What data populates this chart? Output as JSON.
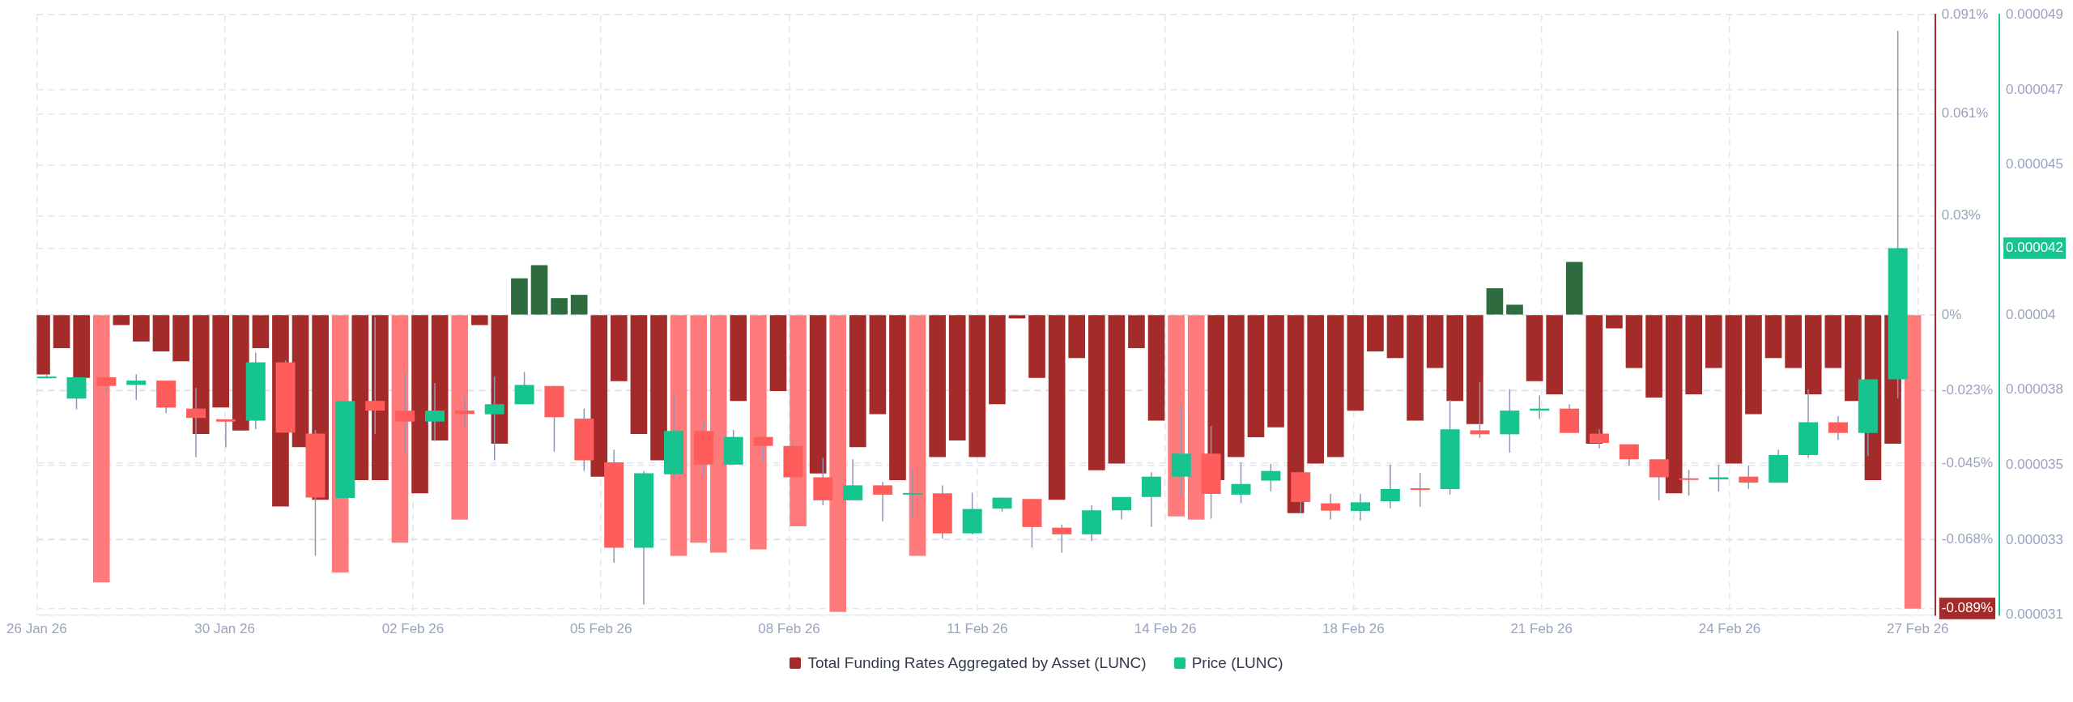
{
  "chart_data": {
    "type": "bar",
    "legend": "bottom",
    "grid": true,
    "xlim": [
      "--01-26T23:00",
      "--02-27T18:00"
    ],
    "xticks": [
      {
        "value": "--01-26T23:00",
        "label": "26 Jan 26"
      },
      {
        "value": "--01-30T02:36",
        "label": "30 Jan 26"
      },
      {
        "value": "--02-02T06:12",
        "label": "02 Feb 26"
      },
      {
        "value": "--02-05T09:48",
        "label": "05 Feb 26"
      },
      {
        "value": "--02-08T13:24",
        "label": "08 Feb 26"
      },
      {
        "value": "--02-11T17:00",
        "label": "11 Feb 26"
      },
      {
        "value": "--02-14T20:36",
        "label": "14 Feb 26"
      },
      {
        "value": "--02-18T00:12",
        "label": "18 Feb 26"
      },
      {
        "value": "--02-21T03:48",
        "label": "21 Feb 26"
      },
      {
        "value": "--02-24T07:24",
        "label": "24 Feb 26"
      },
      {
        "value": "--02-27T11:00",
        "label": "27 Feb 26"
      }
    ],
    "ylim": [
      -0.091,
      0.091
    ],
    "yticks": [
      {
        "value": 0.091,
        "label": "0.091%"
      },
      {
        "value": 0.061,
        "label": "0.061%"
      },
      {
        "value": 0.03,
        "label": "0.03%"
      },
      {
        "value": 0,
        "label": "0%"
      },
      {
        "value": -0.023,
        "label": "-0.023%"
      },
      {
        "value": -0.045,
        "label": "-0.045%"
      },
      {
        "value": -0.068,
        "label": "-0.068%"
      },
      {
        "value": -0.089,
        "label": "-0.089%"
      }
    ],
    "y2lim": [
      3.1e-05,
      4.9e-05
    ],
    "y2ticks": [
      {
        "value": 4.9e-05,
        "label": "0.000049"
      },
      {
        "value": 4.675e-05,
        "label": "0.000047"
      },
      {
        "value": 4.45e-05,
        "label": "0.000045"
      },
      {
        "value": 4.2e-05,
        "label": "0.000042"
      },
      {
        "value": 4e-05,
        "label": "0.00004"
      },
      {
        "value": 3.775e-05,
        "label": "0.000038"
      },
      {
        "value": 3.55e-05,
        "label": "0.000035"
      },
      {
        "value": 3.325e-05,
        "label": "0.000033"
      },
      {
        "value": 3.1e-05,
        "label": "0.000031"
      }
    ],
    "series": [
      {
        "name": "Total Funding Rates Aggregated by Asset (LUNC)",
        "color": "#a52a2a",
        "x": [
          "--01-27T01:00",
          "--01-27T09:00",
          "--01-27T17:00",
          "--01-28T01:00",
          "--01-28T09:00",
          "--01-28T17:00",
          "--01-29T01:00",
          "--01-29T09:00",
          "--01-29T17:00",
          "--01-30T01:00",
          "--01-30T09:00",
          "--01-30T17:00",
          "--01-31T01:00",
          "--01-31T09:00",
          "--01-31T17:00",
          "--02-01T01:00",
          "--02-01T09:00",
          "--02-01T17:00",
          "--02-02T01:00",
          "--02-02T09:00",
          "--02-02T17:00",
          "--02-03T01:00",
          "--02-03T09:00",
          "--02-03T17:00",
          "--02-04T01:00",
          "--02-04T09:00",
          "--02-04T17:00",
          "--02-05T01:00",
          "--02-05T09:00",
          "--02-05T17:00",
          "--02-06T01:00",
          "--02-06T09:00",
          "--02-06T17:00",
          "--02-07T01:00",
          "--02-07T09:00",
          "--02-07T17:00",
          "--02-08T01:00",
          "--02-08T09:00",
          "--02-08T17:00",
          "--02-09T01:00",
          "--02-09T09:00",
          "--02-09T17:00",
          "--02-10T01:00",
          "--02-10T09:00",
          "--02-10T17:00",
          "--02-11T01:00",
          "--02-11T09:00",
          "--02-11T17:00",
          "--02-12T01:00",
          "--02-12T09:00",
          "--02-12T17:00",
          "--02-13T01:00",
          "--02-13T09:00",
          "--02-13T17:00",
          "--02-14T01:00",
          "--02-14T09:00",
          "--02-14T17:00",
          "--02-15T01:00",
          "--02-15T09:00",
          "--02-15T17:00",
          "--02-16T01:00",
          "--02-16T09:00",
          "--02-16T17:00",
          "--02-17T01:00",
          "--02-17T09:00",
          "--02-17T17:00",
          "--02-18T01:00",
          "--02-18T09:00",
          "--02-18T17:00",
          "--02-19T01:00",
          "--02-19T09:00",
          "--02-19T17:00",
          "--02-20T01:00",
          "--02-20T09:00",
          "--02-20T17:00",
          "--02-21T01:00",
          "--02-21T09:00",
          "--02-21T17:00",
          "--02-22T01:00",
          "--02-22T09:00",
          "--02-22T17:00",
          "--02-23T01:00",
          "--02-23T09:00",
          "--02-23T17:00",
          "--02-24T01:00",
          "--02-24T09:00",
          "--02-24T17:00",
          "--02-25T01:00",
          "--02-25T09:00",
          "--02-25T17:00",
          "--02-26T01:00",
          "--02-26T09:00",
          "--02-26T17:00",
          "--02-27T01:00",
          "--02-27T09:00"
        ],
        "values": [
          -0.018,
          -0.01,
          -0.019,
          -0.081,
          -0.003,
          -0.008,
          -0.011,
          -0.014,
          -0.036,
          -0.028,
          -0.035,
          -0.01,
          -0.058,
          -0.04,
          -0.056,
          -0.078,
          -0.05,
          -0.05,
          -0.069,
          -0.054,
          -0.038,
          -0.062,
          -0.003,
          -0.039,
          0.011,
          0.015,
          0.005,
          0.006,
          -0.049,
          -0.02,
          -0.036,
          -0.044,
          -0.073,
          -0.069,
          -0.072,
          -0.026,
          -0.071,
          -0.023,
          -0.064,
          -0.048,
          -0.09,
          -0.04,
          -0.03,
          -0.05,
          -0.073,
          -0.043,
          -0.038,
          -0.043,
          -0.027,
          -0.001,
          -0.019,
          -0.056,
          -0.013,
          -0.047,
          -0.045,
          -0.01,
          -0.032,
          -0.061,
          -0.062,
          -0.05,
          -0.043,
          -0.037,
          -0.034,
          -0.06,
          -0.045,
          -0.043,
          -0.029,
          -0.011,
          -0.013,
          -0.032,
          -0.016,
          -0.026,
          -0.033,
          0.008,
          0.003,
          -0.02,
          -0.024,
          0.016,
          -0.039,
          -0.004,
          -0.016,
          -0.025,
          -0.054,
          -0.024,
          -0.016,
          -0.045,
          -0.03,
          -0.013,
          -0.016,
          -0.024,
          -0.016,
          -0.026,
          -0.05,
          -0.039,
          -0.089
        ],
        "colors": [
          "#a52a2a",
          "#a52a2a",
          "#a52a2a",
          "#ff7b7b",
          "#a52a2a",
          "#a52a2a",
          "#a52a2a",
          "#a52a2a",
          "#a52a2a",
          "#a52a2a",
          "#a52a2a",
          "#a52a2a",
          "#a52a2a",
          "#a52a2a",
          "#a52a2a",
          "#ff7b7b",
          "#a52a2a",
          "#a52a2a",
          "#ff7b7b",
          "#a52a2a",
          "#a52a2a",
          "#ff7b7b",
          "#a52a2a",
          "#a52a2a",
          "#2e6b3f",
          "#2e6b3f",
          "#2e6b3f",
          "#2e6b3f",
          "#a52a2a",
          "#a52a2a",
          "#a52a2a",
          "#a52a2a",
          "#ff7b7b",
          "#ff7b7b",
          "#ff7b7b",
          "#a52a2a",
          "#ff7b7b",
          "#a52a2a",
          "#ff7b7b",
          "#a52a2a",
          "#ff7b7b",
          "#a52a2a",
          "#a52a2a",
          "#a52a2a",
          "#ff7b7b",
          "#a52a2a",
          "#a52a2a",
          "#a52a2a",
          "#a52a2a",
          "#a52a2a",
          "#a52a2a",
          "#a52a2a",
          "#a52a2a",
          "#a52a2a",
          "#a52a2a",
          "#a52a2a",
          "#a52a2a",
          "#ff7b7b",
          "#ff7b7b",
          "#a52a2a",
          "#a52a2a",
          "#a52a2a",
          "#a52a2a",
          "#a52a2a",
          "#a52a2a",
          "#a52a2a",
          "#a52a2a",
          "#a52a2a",
          "#a52a2a",
          "#a52a2a",
          "#a52a2a",
          "#a52a2a",
          "#a52a2a",
          "#2e6b3f",
          "#2e6b3f",
          "#a52a2a",
          "#a52a2a",
          "#2e6b3f",
          "#a52a2a",
          "#a52a2a",
          "#a52a2a",
          "#a52a2a",
          "#a52a2a",
          "#a52a2a",
          "#a52a2a",
          "#a52a2a",
          "#a52a2a",
          "#a52a2a",
          "#a52a2a",
          "#a52a2a",
          "#a52a2a",
          "#a52a2a",
          "#a52a2a",
          "#a52a2a",
          "#ff7b7b"
        ]
      },
      {
        "type": "candlestick",
        "name": "Price (LUNC)",
        "color": "#16c490",
        "axis": "y2",
        "x": [
          "--01-27T03:00",
          "--01-27T15:00",
          "--01-28T03:00",
          "--01-28T15:00",
          "--01-29T03:00",
          "--01-29T15:00",
          "--01-30T03:00",
          "--01-30T15:00",
          "--01-31T03:00",
          "--01-31T15:00",
          "--02-01T03:00",
          "--02-01T15:00",
          "--02-02T03:00",
          "--02-02T15:00",
          "--02-03T03:00",
          "--02-03T15:00",
          "--02-04T03:00",
          "--02-04T15:00",
          "--02-05T03:00",
          "--02-05T15:00",
          "--02-06T03:00",
          "--02-06T15:00",
          "--02-07T03:00",
          "--02-07T15:00",
          "--02-08T03:00",
          "--02-08T15:00",
          "--02-09T03:00",
          "--02-09T15:00",
          "--02-10T03:00",
          "--02-10T15:00",
          "--02-11T03:00",
          "--02-11T15:00",
          "--02-12T03:00",
          "--02-12T15:00",
          "--02-13T03:00",
          "--02-13T15:00",
          "--02-14T03:00",
          "--02-14T15:00",
          "--02-15T03:00",
          "--02-15T15:00",
          "--02-16T03:00",
          "--02-16T15:00",
          "--02-17T03:00",
          "--02-17T15:00",
          "--02-18T03:00",
          "--02-18T15:00",
          "--02-19T03:00",
          "--02-19T15:00",
          "--02-20T03:00",
          "--02-20T15:00",
          "--02-21T03:00",
          "--02-21T15:00",
          "--02-22T03:00",
          "--02-22T15:00",
          "--02-23T03:00",
          "--02-23T15:00",
          "--02-24T03:00",
          "--02-24T15:00",
          "--02-25T03:00",
          "--02-25T15:00",
          "--02-26T03:00",
          "--02-26T15:00",
          "--02-27T03:00"
        ],
        "ohlc": [
          [
            3.812e-05,
            3.82e-05,
            3.81e-05,
            3.815e-05
          ],
          [
            3.749e-05,
            3.813e-05,
            3.717e-05,
            3.813e-05
          ],
          [
            3.813e-05,
            3.813e-05,
            3.767e-05,
            3.787e-05
          ],
          [
            3.79e-05,
            3.822e-05,
            3.745e-05,
            3.803e-05
          ],
          [
            3.803e-05,
            3.803e-05,
            3.706e-05,
            3.722e-05
          ],
          [
            3.719e-05,
            3.781e-05,
            3.573e-05,
            3.691e-05
          ],
          [
            3.687e-05,
            3.687e-05,
            3.603e-05,
            3.68e-05
          ],
          [
            3.683e-05,
            3.887e-05,
            3.657e-05,
            3.858e-05
          ],
          [
            3.858e-05,
            3.864e-05,
            3.647e-05,
            3.647e-05
          ],
          [
            3.644e-05,
            3.655e-05,
            3.278e-05,
            3.452e-05
          ],
          [
            3.451e-05,
            3.742e-05,
            3.451e-05,
            3.742e-05
          ],
          [
            3.742e-05,
            3.993e-05,
            3.642e-05,
            3.713e-05
          ],
          [
            3.713e-05,
            3.829e-05,
            3.58e-05,
            3.68e-05
          ],
          [
            3.68e-05,
            3.796e-05,
            3.622e-05,
            3.713e-05
          ],
          [
            3.713e-05,
            3.755e-05,
            3.657e-05,
            3.703e-05
          ],
          [
            3.702e-05,
            3.816e-05,
            3.564e-05,
            3.732e-05
          ],
          [
            3.732e-05,
            3.829e-05,
            3.732e-05,
            3.79e-05
          ],
          [
            3.787e-05,
            3.787e-05,
            3.59e-05,
            3.693e-05
          ],
          [
            3.689e-05,
            3.719e-05,
            3.532e-05,
            3.564e-05
          ],
          [
            3.558e-05,
            3.596e-05,
            3.257e-05,
            3.302e-05
          ],
          [
            3.302e-05,
            3.532e-05,
            3.132e-05,
            3.525e-05
          ],
          [
            3.522e-05,
            3.764e-05,
            3.506e-05,
            3.652e-05
          ],
          [
            3.652e-05,
            3.68e-05,
            3.519e-05,
            3.551e-05
          ],
          [
            3.551e-05,
            3.655e-05,
            3.551e-05,
            3.634e-05
          ],
          [
            3.634e-05,
            3.634e-05,
            3.558e-05,
            3.607e-05
          ],
          [
            3.607e-05,
            3.629e-05,
            3.513e-05,
            3.513e-05
          ],
          [
            3.513e-05,
            3.571e-05,
            3.429e-05,
            3.444e-05
          ],
          [
            3.444e-05,
            3.567e-05,
            3.444e-05,
            3.489e-05
          ],
          [
            3.489e-05,
            3.499e-05,
            3.381e-05,
            3.461e-05
          ],
          [
            3.463e-05,
            3.536e-05,
            3.396e-05,
            3.466e-05
          ],
          [
            3.465e-05,
            3.489e-05,
            3.329e-05,
            3.345e-05
          ],
          [
            3.345e-05,
            3.467e-05,
            3.342e-05,
            3.418e-05
          ],
          [
            3.419e-05,
            3.452e-05,
            3.409e-05,
            3.452e-05
          ],
          [
            3.448e-05,
            3.448e-05,
            3.302e-05,
            3.364e-05
          ],
          [
            3.362e-05,
            3.371e-05,
            3.287e-05,
            3.342e-05
          ],
          [
            3.342e-05,
            3.429e-05,
            3.322e-05,
            3.414e-05
          ],
          [
            3.414e-05,
            3.454e-05,
            3.387e-05,
            3.454e-05
          ],
          [
            3.454e-05,
            3.528e-05,
            3.364e-05,
            3.515e-05
          ],
          [
            3.515e-05,
            3.729e-05,
            3.458e-05,
            3.584e-05
          ],
          [
            3.584e-05,
            3.667e-05,
            3.389e-05,
            3.463e-05
          ],
          [
            3.461e-05,
            3.558e-05,
            3.435e-05,
            3.493e-05
          ],
          [
            3.503e-05,
            3.554e-05,
            3.471e-05,
            3.532e-05
          ],
          [
            3.528e-05,
            3.528e-05,
            3.407e-05,
            3.439e-05
          ],
          [
            3.435e-05,
            3.463e-05,
            3.387e-05,
            3.413e-05
          ],
          [
            3.412e-05,
            3.463e-05,
            3.383e-05,
            3.438e-05
          ],
          [
            3.441e-05,
            3.551e-05,
            3.42e-05,
            3.478e-05
          ],
          [
            3.48e-05,
            3.526e-05,
            3.425e-05,
            3.478e-05
          ],
          [
            3.478e-05,
            3.745e-05,
            3.461e-05,
            3.657e-05
          ],
          [
            3.654e-05,
            3.799e-05,
            3.631e-05,
            3.642e-05
          ],
          [
            3.642e-05,
            3.777e-05,
            3.587e-05,
            3.713e-05
          ],
          [
            3.713e-05,
            3.758e-05,
            3.687e-05,
            3.719e-05
          ],
          [
            3.719e-05,
            3.732e-05,
            3.646e-05,
            3.646e-05
          ],
          [
            3.644e-05,
            3.657e-05,
            3.6e-05,
            3.616e-05
          ],
          [
            3.612e-05,
            3.612e-05,
            3.548e-05,
            3.567e-05
          ],
          [
            3.567e-05,
            3.567e-05,
            3.444e-05,
            3.513e-05
          ],
          [
            3.51e-05,
            3.535e-05,
            3.458e-05,
            3.507e-05
          ],
          [
            3.507e-05,
            3.551e-05,
            3.47e-05,
            3.513e-05
          ],
          [
            3.515e-05,
            3.548e-05,
            3.478e-05,
            3.497e-05
          ],
          [
            3.497e-05,
            3.596e-05,
            3.497e-05,
            3.58e-05
          ],
          [
            3.58e-05,
            3.777e-05,
            3.571e-05,
            3.678e-05
          ],
          [
            3.678e-05,
            3.696e-05,
            3.625e-05,
            3.646e-05
          ],
          [
            3.646e-05,
            3.807e-05,
            3.577e-05,
            3.807e-05
          ],
          [
            3.807e-05,
            4.852e-05,
            3.749e-05,
            4.2e-05
          ]
        ],
        "colors": [
          "#16c490",
          "#16c490",
          "#ff5c5c",
          "#16c490",
          "#ff5c5c",
          "#ff5c5c",
          "#ff5c5c",
          "#16c490",
          "#ff5c5c",
          "#ff5c5c",
          "#16c490",
          "#ff5c5c",
          "#ff5c5c",
          "#16c490",
          "#ff5c5c",
          "#16c490",
          "#16c490",
          "#ff5c5c",
          "#ff5c5c",
          "#ff5c5c",
          "#16c490",
          "#16c490",
          "#ff5c5c",
          "#16c490",
          "#ff5c5c",
          "#ff5c5c",
          "#ff5c5c",
          "#16c490",
          "#ff5c5c",
          "#16c490",
          "#ff5c5c",
          "#16c490",
          "#16c490",
          "#ff5c5c",
          "#ff5c5c",
          "#16c490",
          "#16c490",
          "#16c490",
          "#16c490",
          "#ff5c5c",
          "#16c490",
          "#16c490",
          "#ff5c5c",
          "#ff5c5c",
          "#16c490",
          "#16c490",
          "#ff5c5c",
          "#16c490",
          "#ff5c5c",
          "#16c490",
          "#16c490",
          "#ff5c5c",
          "#ff5c5c",
          "#ff5c5c",
          "#ff5c5c",
          "#ff5c5c",
          "#16c490",
          "#ff5c5c",
          "#16c490",
          "#16c490",
          "#ff5c5c",
          "#16c490",
          "#16c490"
        ]
      }
    ]
  }
}
